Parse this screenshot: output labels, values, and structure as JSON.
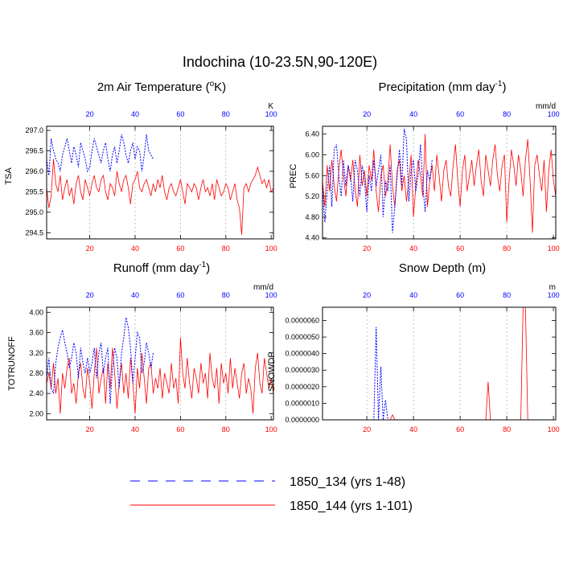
{
  "page": {
    "title": "Indochina (10-23.5N,90-120E)"
  },
  "legend": {
    "items": [
      {
        "label": "1850_134 (yrs 1-48)",
        "color": "#0000ff",
        "style": "dashed"
      },
      {
        "label": "1850_144 (yrs 1-101)",
        "color": "#ff0000",
        "style": "solid"
      }
    ]
  },
  "colors": {
    "red": "#ff0000",
    "blue": "#0000ff",
    "grid": "#999999"
  },
  "chart_data": [
    {
      "type": "line",
      "title": "2m Air Temperature (",
      "title_sup": "o",
      "title_end": "K)",
      "ylabel": "TSA",
      "units": "K",
      "xlim": [
        1,
        101
      ],
      "ylim": [
        294.35,
        297.1
      ],
      "yticks": [
        "294.5",
        "295.0",
        "295.5",
        "296.0",
        "296.5",
        "297.0"
      ],
      "xticks_bottom": [
        "20",
        "40",
        "60",
        "80",
        "100"
      ],
      "xticks_top": [
        "20",
        "40",
        "60",
        "80",
        "100"
      ],
      "series": [
        {
          "name": "1850_144 (yrs 1-101)",
          "color": "#ff0000",
          "values": [
            295.6,
            295.1,
            295.4,
            296.3,
            295.7,
            295.5,
            295.9,
            295.3,
            295.6,
            295.8,
            295.4,
            295.6,
            295.2,
            295.7,
            295.9,
            295.5,
            295.3,
            295.8,
            295.6,
            295.4,
            295.7,
            295.9,
            295.6,
            295.5,
            295.8,
            295.9,
            295.5,
            295.3,
            295.7,
            295.6,
            295.4,
            296.0,
            295.7,
            295.5,
            295.8,
            295.9,
            295.6,
            295.2,
            295.7,
            295.8,
            296.0,
            295.6,
            295.5,
            295.7,
            295.8,
            295.6,
            295.4,
            295.7,
            295.5,
            295.8,
            295.6,
            295.9,
            295.5,
            295.3,
            295.6,
            295.7,
            295.5,
            295.4,
            295.6,
            295.8,
            295.5,
            295.2,
            295.7,
            295.6,
            295.5,
            295.7,
            295.6,
            295.3,
            295.6,
            295.8,
            295.5,
            295.6,
            295.4,
            295.7,
            295.3,
            295.8,
            295.6,
            295.4,
            295.5,
            295.7,
            295.6,
            295.3,
            295.5,
            295.7,
            295.3,
            295.1,
            294.45,
            295.6,
            295.7,
            295.5,
            295.7,
            295.8,
            295.9,
            296.1,
            295.9,
            295.7,
            295.8,
            295.6,
            295.8,
            295.5,
            295.6
          ]
        },
        {
          "name": "1850_134 (yrs 1-48)",
          "color": "#0000ff",
          "values": [
            296.3,
            295.9,
            296.8,
            296.5,
            296.3,
            296.2,
            296.0,
            296.4,
            296.6,
            296.8,
            296.5,
            296.2,
            296.6,
            296.4,
            296.1,
            296.7,
            296.5,
            296.3,
            296.0,
            296.1,
            296.5,
            296.8,
            296.6,
            296.4,
            296.2,
            296.5,
            296.7,
            296.3,
            296.0,
            296.4,
            296.6,
            296.2,
            296.5,
            296.9,
            296.7,
            296.4,
            296.2,
            296.5,
            296.7,
            296.3,
            296.6,
            296.5,
            296.0,
            296.4,
            296.9,
            296.5,
            296.4,
            296.3
          ]
        }
      ]
    },
    {
      "type": "line",
      "title": "Precipitation (mm day",
      "title_sup": "-1",
      "title_end": ")",
      "ylabel": "PREC",
      "units": "mm/d",
      "xlim": [
        1,
        101
      ],
      "ylim": [
        4.38,
        6.55
      ],
      "yticks": [
        "4.40",
        "4.80",
        "5.20",
        "5.60",
        "6.00",
        "6.40"
      ],
      "xticks_bottom": [
        "20",
        "40",
        "60",
        "80",
        "100"
      ],
      "xticks_top": [
        "20",
        "40",
        "60",
        "80",
        "100"
      ],
      "series": [
        {
          "name": "1850_144 (yrs 1-101)",
          "color": "#ff0000",
          "values": [
            5.5,
            5.0,
            5.8,
            5.3,
            5.9,
            5.4,
            5.1,
            5.7,
            6.1,
            5.6,
            5.2,
            5.8,
            5.5,
            5.9,
            5.3,
            5.0,
            6.0,
            5.4,
            5.7,
            5.2,
            5.8,
            5.5,
            6.1,
            5.3,
            4.9,
            5.6,
            5.8,
            5.2,
            5.5,
            6.2,
            5.4,
            5.0,
            5.7,
            5.9,
            5.3,
            5.6,
            5.1,
            5.5,
            6.0,
            4.8,
            5.4,
            5.9,
            5.6,
            5.2,
            6.4,
            5.0,
            5.5,
            5.8,
            5.3,
            6.0,
            5.6,
            5.1,
            5.7,
            5.9,
            5.4,
            5.2,
            5.8,
            6.2,
            5.5,
            5.0,
            5.7,
            6.0,
            5.3,
            5.6,
            5.9,
            5.4,
            5.8,
            6.1,
            5.5,
            5.2,
            6.0,
            5.7,
            5.4,
            5.9,
            6.2,
            5.6,
            5.3,
            5.8,
            6.0,
            4.7,
            5.5,
            6.1,
            5.8,
            5.4,
            6.0,
            5.7,
            5.2,
            5.9,
            6.3,
            5.5,
            4.5,
            5.8,
            6.0,
            5.6,
            5.3,
            5.9,
            4.9,
            5.7,
            6.1,
            5.5,
            5.2
          ]
        },
        {
          "name": "1850_134 (yrs 1-48)",
          "color": "#0000ff",
          "values": [
            5.4,
            4.7,
            5.3,
            5.8,
            5.0,
            6.1,
            6.2,
            5.6,
            5.2,
            5.9,
            5.4,
            5.8,
            5.6,
            5.1,
            5.9,
            5.7,
            5.2,
            5.8,
            5.5,
            4.9,
            5.6,
            5.3,
            5.9,
            5.4,
            5.7,
            6.0,
            4.8,
            5.5,
            5.3,
            5.8,
            4.5,
            5.0,
            5.6,
            6.1,
            5.4,
            6.5,
            6.3,
            5.1,
            5.7,
            5.9,
            5.3,
            5.6,
            6.2,
            5.4,
            4.9,
            5.7,
            5.5,
            5.9
          ]
        }
      ]
    },
    {
      "type": "line",
      "title": "Runoff (mm day",
      "title_sup": "-1",
      "title_end": ")",
      "ylabel": "TOTRUNOFF",
      "units": "mm/d",
      "xlim": [
        1,
        101
      ],
      "ylim": [
        1.88,
        4.1
      ],
      "yticks": [
        "2.00",
        "2.40",
        "2.80",
        "3.20",
        "3.60",
        "4.00"
      ],
      "xticks_bottom": [
        "20",
        "40",
        "60",
        "80",
        "100"
      ],
      "xticks_top": [
        "20",
        "40",
        "60",
        "80",
        "100"
      ],
      "series": [
        {
          "name": "1850_144 (yrs 1-101)",
          "color": "#ff0000",
          "values": [
            2.6,
            2.8,
            2.5,
            3.0,
            2.4,
            2.7,
            2.0,
            2.8,
            2.5,
            2.9,
            3.1,
            2.4,
            2.6,
            2.2,
            2.8,
            3.0,
            2.5,
            2.3,
            2.9,
            2.6,
            2.1,
            2.8,
            3.3,
            2.4,
            2.7,
            2.9,
            2.2,
            3.0,
            2.5,
            3.3,
            2.8,
            2.1,
            2.6,
            3.0,
            2.4,
            2.8,
            2.3,
            3.1,
            2.6,
            2.0,
            2.9,
            2.5,
            3.2,
            2.7,
            2.2,
            2.9,
            3.0,
            2.4,
            2.7,
            2.5,
            2.9,
            2.3,
            2.8,
            2.6,
            2.4,
            3.0,
            2.5,
            2.7,
            2.2,
            3.5,
            2.8,
            2.5,
            3.1,
            2.6,
            2.3,
            2.9,
            2.7,
            2.4,
            3.0,
            2.6,
            2.8,
            2.3,
            3.2,
            2.7,
            2.5,
            2.9,
            2.2,
            3.0,
            2.6,
            2.8,
            2.4,
            3.1,
            2.5,
            2.9,
            2.6,
            2.3,
            2.8,
            3.0,
            2.4,
            2.7,
            2.5,
            2.0,
            2.9,
            3.2,
            2.6,
            2.4,
            3.1,
            2.8,
            2.5,
            2.7,
            2.4
          ]
        },
        {
          "name": "1850_134 (yrs 1-48)",
          "color": "#0000ff",
          "values": [
            2.7,
            3.1,
            2.5,
            2.4,
            3.0,
            3.3,
            3.5,
            3.65,
            3.4,
            3.2,
            2.9,
            3.1,
            3.4,
            3.2,
            2.7,
            3.3,
            3.0,
            2.8,
            3.1,
            2.8,
            3.0,
            3.3,
            2.7,
            3.2,
            3.4,
            2.8,
            3.1,
            3.3,
            2.2,
            2.9,
            3.3,
            3.1,
            2.5,
            3.2,
            3.5,
            3.9,
            3.7,
            3.3,
            2.6,
            3.1,
            3.6,
            3.5,
            2.8,
            3.0,
            3.4,
            3.2,
            2.9,
            3.2
          ]
        }
      ]
    },
    {
      "type": "line",
      "title": "Snow Depth (m)",
      "title_sup": "",
      "title_end": "",
      "ylabel": "SNOWDP",
      "units": "m",
      "xlim": [
        1,
        101
      ],
      "ylim": [
        0,
        6.8e-06
      ],
      "yticks": [
        "0.0000000",
        "0.0000010",
        "0.0000020",
        "0.0000030",
        "0.0000040",
        "0.0000050",
        "0.0000060"
      ],
      "xticks_bottom": [
        "20",
        "40",
        "60",
        "80",
        "100"
      ],
      "xticks_top": [
        "20",
        "40",
        "60",
        "80",
        "100"
      ],
      "series": [
        {
          "name": "1850_144 (yrs 1-101)",
          "color": "#ff0000",
          "values": [
            0,
            0,
            0,
            0,
            0,
            0,
            0,
            0,
            0,
            0,
            0,
            0,
            0,
            0,
            0,
            0,
            0,
            0,
            0,
            0,
            0,
            0,
            0,
            0,
            0,
            0,
            0,
            0,
            0,
            0,
            3e-07,
            0,
            0,
            0,
            0,
            0,
            0,
            0,
            0,
            0,
            0,
            0,
            0,
            0,
            0,
            0,
            0,
            0,
            0,
            0,
            0,
            0,
            0,
            0,
            0,
            0,
            0,
            0,
            0,
            0,
            0,
            0,
            0,
            0,
            0,
            0,
            0,
            0,
            0,
            0,
            0,
            2.3e-06,
            0,
            0,
            0,
            0,
            0,
            0,
            0,
            0,
            0,
            0,
            0,
            0,
            0,
            0,
            6.8e-06,
            6.8e-06,
            0,
            0,
            0,
            0,
            0,
            0,
            0,
            0,
            0,
            0,
            0,
            0,
            0
          ]
        },
        {
          "name": "1850_134 (yrs 1-48)",
          "color": "#0000ff",
          "values": [
            0,
            0,
            0,
            0,
            0,
            0,
            0,
            0,
            0,
            0,
            0,
            0,
            0,
            0,
            0,
            0,
            0,
            0,
            0,
            0,
            0,
            0,
            0,
            5.6e-06,
            0,
            3.2e-06,
            0,
            1.2e-06,
            0,
            0,
            0,
            0,
            0,
            0,
            0,
            0,
            0,
            0,
            0,
            0,
            0,
            0,
            0,
            0,
            0,
            0,
            0,
            0
          ]
        }
      ]
    }
  ]
}
